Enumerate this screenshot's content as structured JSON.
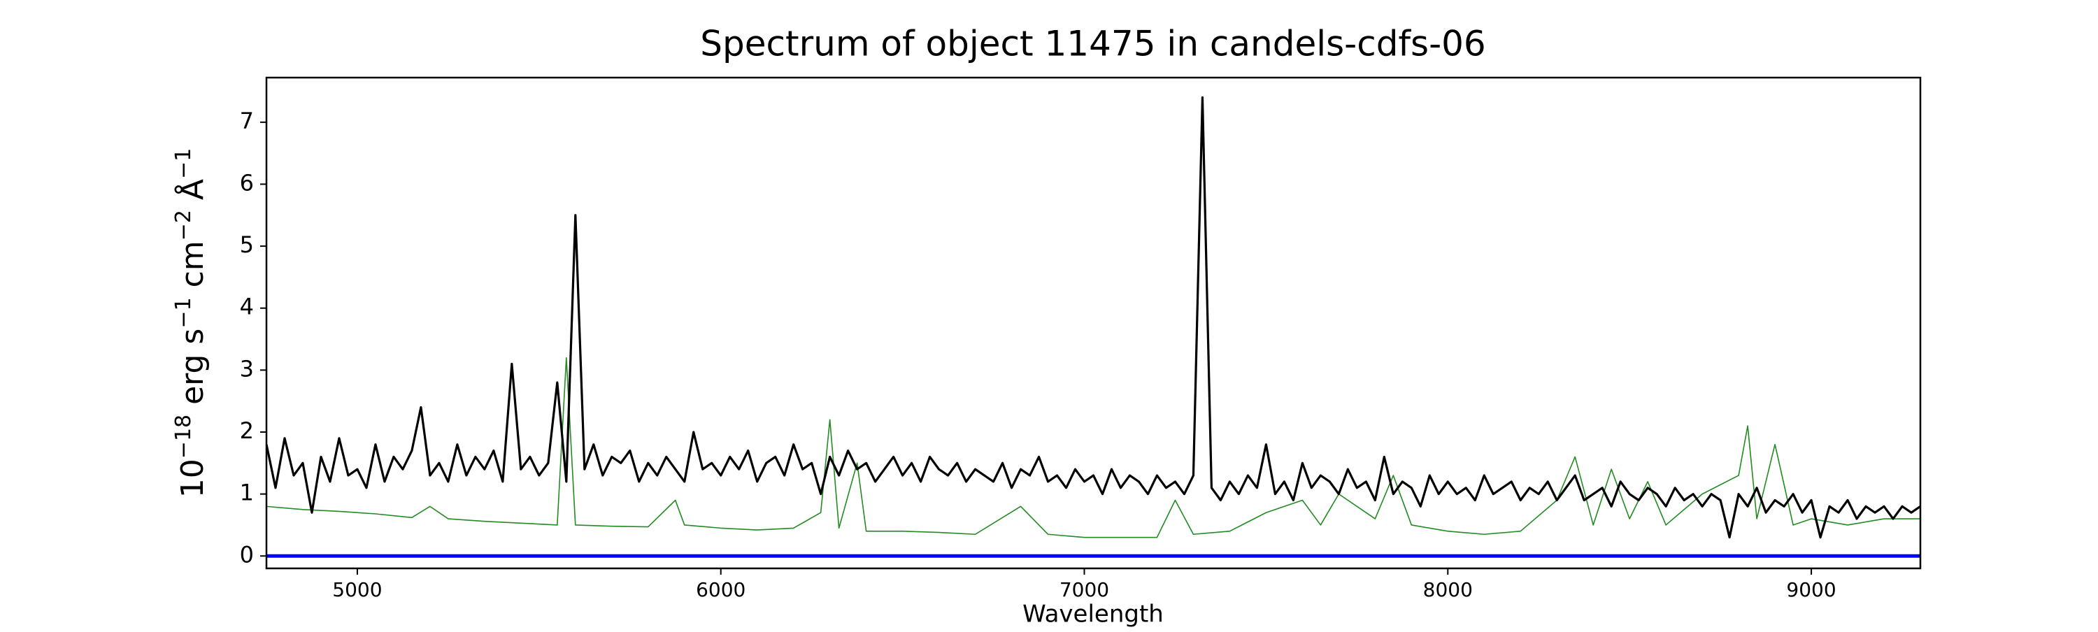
{
  "chart_data": {
    "type": "line",
    "title": "Spectrum of object 11475 in candels-cdfs-06",
    "xlabel": "Wavelength",
    "ylabel": [
      "10",
      "−18",
      " erg s",
      "−1",
      " cm",
      "−2",
      " Å",
      "−1"
    ],
    "xlim": [
      4750,
      9300
    ],
    "ylim": [
      -0.2,
      7.72
    ],
    "xticks": [
      5000,
      6000,
      7000,
      8000,
      9000
    ],
    "yticks": [
      0,
      1,
      2,
      3,
      4,
      5,
      6,
      7
    ],
    "grid": false,
    "series": [
      {
        "color": "#0000ff",
        "width": 5,
        "x": [
          4750,
          9300
        ],
        "values": [
          0,
          0
        ]
      },
      {
        "color": "#228b22",
        "width": 1.6,
        "x": [
          4750,
          4850,
          4950,
          5050,
          5150,
          5200,
          5250,
          5350,
          5450,
          5550,
          5575,
          5600,
          5700,
          5800,
          5875,
          5900,
          6000,
          6100,
          6200,
          6275,
          6300,
          6325,
          6375,
          6400,
          6500,
          6600,
          6700,
          6825,
          6900,
          7000,
          7100,
          7200,
          7250,
          7300,
          7400,
          7500,
          7600,
          7650,
          7700,
          7800,
          7850,
          7900,
          8000,
          8100,
          8200,
          8300,
          8350,
          8400,
          8450,
          8500,
          8550,
          8600,
          8700,
          8800,
          8825,
          8850,
          8900,
          8950,
          9000,
          9100,
          9200,
          9300
        ],
        "values": [
          0.8,
          0.75,
          0.72,
          0.68,
          0.62,
          0.8,
          0.6,
          0.56,
          0.53,
          0.5,
          3.2,
          0.5,
          0.48,
          0.47,
          0.9,
          0.5,
          0.45,
          0.42,
          0.45,
          0.7,
          2.2,
          0.45,
          1.5,
          0.4,
          0.4,
          0.38,
          0.35,
          0.8,
          0.35,
          0.3,
          0.3,
          0.3,
          0.9,
          0.35,
          0.4,
          0.7,
          0.9,
          0.5,
          1.0,
          0.6,
          1.3,
          0.5,
          0.4,
          0.35,
          0.4,
          0.9,
          1.6,
          0.5,
          1.4,
          0.6,
          1.2,
          0.5,
          1.0,
          1.3,
          2.1,
          0.6,
          1.8,
          0.5,
          0.6,
          0.5,
          0.6,
          0.6
        ]
      },
      {
        "color": "#000000",
        "width": 3.2,
        "x": [
          4750,
          4775,
          4800,
          4825,
          4850,
          4875,
          4900,
          4925,
          4950,
          4975,
          5000,
          5025,
          5050,
          5075,
          5100,
          5125,
          5150,
          5175,
          5200,
          5225,
          5250,
          5275,
          5300,
          5325,
          5350,
          5375,
          5400,
          5425,
          5450,
          5475,
          5500,
          5525,
          5550,
          5575,
          5600,
          5625,
          5650,
          5675,
          5700,
          5725,
          5750,
          5775,
          5800,
          5825,
          5850,
          5875,
          5900,
          5925,
          5950,
          5975,
          6000,
          6025,
          6050,
          6075,
          6100,
          6125,
          6150,
          6175,
          6200,
          6225,
          6250,
          6275,
          6300,
          6325,
          6350,
          6375,
          6400,
          6425,
          6450,
          6475,
          6500,
          6525,
          6550,
          6575,
          6600,
          6625,
          6650,
          6675,
          6700,
          6725,
          6750,
          6775,
          6800,
          6825,
          6850,
          6875,
          6900,
          6925,
          6950,
          6975,
          7000,
          7025,
          7050,
          7075,
          7100,
          7125,
          7150,
          7175,
          7200,
          7225,
          7250,
          7275,
          7300,
          7325,
          7350,
          7375,
          7400,
          7425,
          7450,
          7475,
          7500,
          7525,
          7550,
          7575,
          7600,
          7625,
          7650,
          7675,
          7700,
          7725,
          7750,
          7775,
          7800,
          7825,
          7850,
          7875,
          7900,
          7925,
          7950,
          7975,
          8000,
          8025,
          8050,
          8075,
          8100,
          8125,
          8150,
          8175,
          8200,
          8225,
          8250,
          8275,
          8300,
          8325,
          8350,
          8375,
          8400,
          8425,
          8450,
          8475,
          8500,
          8525,
          8550,
          8575,
          8600,
          8625,
          8650,
          8675,
          8700,
          8725,
          8750,
          8775,
          8800,
          8825,
          8850,
          8875,
          8900,
          8925,
          8950,
          8975,
          9000,
          9025,
          9050,
          9075,
          9100,
          9125,
          9150,
          9175,
          9200,
          9225,
          9250,
          9275,
          9300
        ],
        "values": [
          1.8,
          1.1,
          1.9,
          1.3,
          1.5,
          0.7,
          1.6,
          1.2,
          1.9,
          1.3,
          1.4,
          1.1,
          1.8,
          1.2,
          1.6,
          1.4,
          1.7,
          2.4,
          1.3,
          1.5,
          1.2,
          1.8,
          1.3,
          1.6,
          1.4,
          1.7,
          1.2,
          3.1,
          1.4,
          1.6,
          1.3,
          1.5,
          2.8,
          1.2,
          5.5,
          1.4,
          1.8,
          1.3,
          1.6,
          1.5,
          1.7,
          1.2,
          1.5,
          1.3,
          1.6,
          1.4,
          1.2,
          2.0,
          1.4,
          1.5,
          1.3,
          1.6,
          1.4,
          1.7,
          1.2,
          1.5,
          1.6,
          1.3,
          1.8,
          1.4,
          1.5,
          1.0,
          1.6,
          1.3,
          1.7,
          1.4,
          1.5,
          1.2,
          1.4,
          1.6,
          1.3,
          1.5,
          1.2,
          1.6,
          1.4,
          1.3,
          1.5,
          1.2,
          1.4,
          1.3,
          1.2,
          1.5,
          1.1,
          1.4,
          1.3,
          1.6,
          1.2,
          1.3,
          1.1,
          1.4,
          1.2,
          1.3,
          1.0,
          1.4,
          1.1,
          1.3,
          1.2,
          1.0,
          1.3,
          1.1,
          1.2,
          1.0,
          1.3,
          7.4,
          1.1,
          0.9,
          1.2,
          1.0,
          1.3,
          1.1,
          1.8,
          1.0,
          1.2,
          0.9,
          1.5,
          1.1,
          1.3,
          1.2,
          1.0,
          1.4,
          1.1,
          1.2,
          0.9,
          1.6,
          1.0,
          1.2,
          1.1,
          0.8,
          1.3,
          1.0,
          1.2,
          1.0,
          1.1,
          0.9,
          1.3,
          1.0,
          1.1,
          1.2,
          0.9,
          1.1,
          1.0,
          1.2,
          0.9,
          1.1,
          1.3,
          0.9,
          1.0,
          1.1,
          0.8,
          1.2,
          1.0,
          0.9,
          1.1,
          1.0,
          0.8,
          1.1,
          0.9,
          1.0,
          0.8,
          1.0,
          0.9,
          0.3,
          1.0,
          0.8,
          1.1,
          0.7,
          0.9,
          0.8,
          1.0,
          0.7,
          0.9,
          0.3,
          0.8,
          0.7,
          0.9,
          0.6,
          0.8,
          0.7,
          0.8,
          0.6,
          0.8,
          0.7,
          0.8
        ]
      }
    ]
  }
}
